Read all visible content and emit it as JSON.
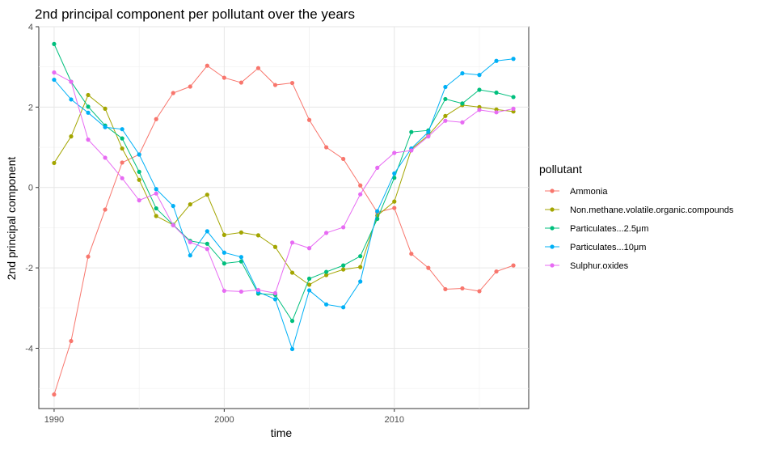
{
  "chart_data": {
    "type": "line",
    "title": "2nd principal component per pollutant over the years",
    "xlabel": "time",
    "ylabel": "2nd principal component",
    "xlim": [
      1989.1,
      2017.9
    ],
    "ylim": [
      -5.5,
      4.0
    ],
    "xticks": [
      1990,
      2000,
      2010
    ],
    "yticks": [
      -4,
      -2,
      0,
      2,
      4
    ],
    "grid": true,
    "legend": {
      "title": "pollutant",
      "position": "right"
    },
    "x": [
      1990,
      1991,
      1992,
      1993,
      1994,
      1995,
      1996,
      1997,
      1998,
      1999,
      2000,
      2001,
      2002,
      2003,
      2004,
      2005,
      2006,
      2007,
      2008,
      2009,
      2010,
      2011,
      2012,
      2013,
      2014,
      2015,
      2016,
      2017
    ],
    "series": [
      {
        "name": "Ammonia",
        "color": "#F8766D",
        "values": [
          -5.15,
          -3.82,
          -1.72,
          -0.55,
          0.62,
          0.82,
          1.7,
          2.35,
          2.51,
          3.03,
          2.73,
          2.61,
          2.97,
          2.55,
          2.6,
          1.68,
          1.0,
          0.71,
          0.05,
          -0.62,
          -0.51,
          -1.65,
          -2.0,
          -2.53,
          -2.51,
          -2.58,
          -2.09,
          -1.94
        ]
      },
      {
        "name": "Non.methane.volatile.organic.compounds",
        "color": "#A3A500",
        "values": [
          0.61,
          1.27,
          2.3,
          1.96,
          0.97,
          0.19,
          -0.71,
          -0.93,
          -0.42,
          -0.18,
          -1.18,
          -1.12,
          -1.19,
          -1.48,
          -2.12,
          -2.42,
          -2.18,
          -2.04,
          -1.98,
          -0.7,
          -0.35,
          0.95,
          1.3,
          1.78,
          2.05,
          2.0,
          1.94,
          1.89
        ]
      },
      {
        "name": "Particulates...2.5μm",
        "color": "#00BF7D",
        "values": [
          3.57,
          2.63,
          2.01,
          1.54,
          1.22,
          0.39,
          -0.52,
          -0.93,
          -1.33,
          -1.4,
          -1.89,
          -1.84,
          -2.64,
          -2.67,
          -3.32,
          -2.27,
          -2.1,
          -1.94,
          -1.71,
          -0.78,
          0.24,
          1.38,
          1.42,
          2.2,
          2.09,
          2.43,
          2.36,
          2.25
        ]
      },
      {
        "name": "Particulates...10μm",
        "color": "#00B0F6",
        "values": [
          2.68,
          2.19,
          1.86,
          1.5,
          1.45,
          0.82,
          -0.04,
          -0.46,
          -1.69,
          -1.09,
          -1.62,
          -1.73,
          -2.6,
          -2.78,
          -4.02,
          -2.56,
          -2.91,
          -2.98,
          -2.34,
          -0.59,
          0.35,
          0.97,
          1.38,
          2.5,
          2.84,
          2.8,
          3.15,
          3.2
        ]
      },
      {
        "name": "Sulphur.oxides",
        "color": "#E76BF3",
        "values": [
          2.86,
          2.63,
          1.19,
          0.74,
          0.23,
          -0.32,
          -0.15,
          -0.94,
          -1.36,
          -1.53,
          -2.57,
          -2.59,
          -2.55,
          -2.63,
          -1.37,
          -1.51,
          -1.13,
          -0.99,
          -0.17,
          0.49,
          0.86,
          0.92,
          1.27,
          1.66,
          1.62,
          1.93,
          1.87,
          1.96
        ]
      }
    ]
  }
}
